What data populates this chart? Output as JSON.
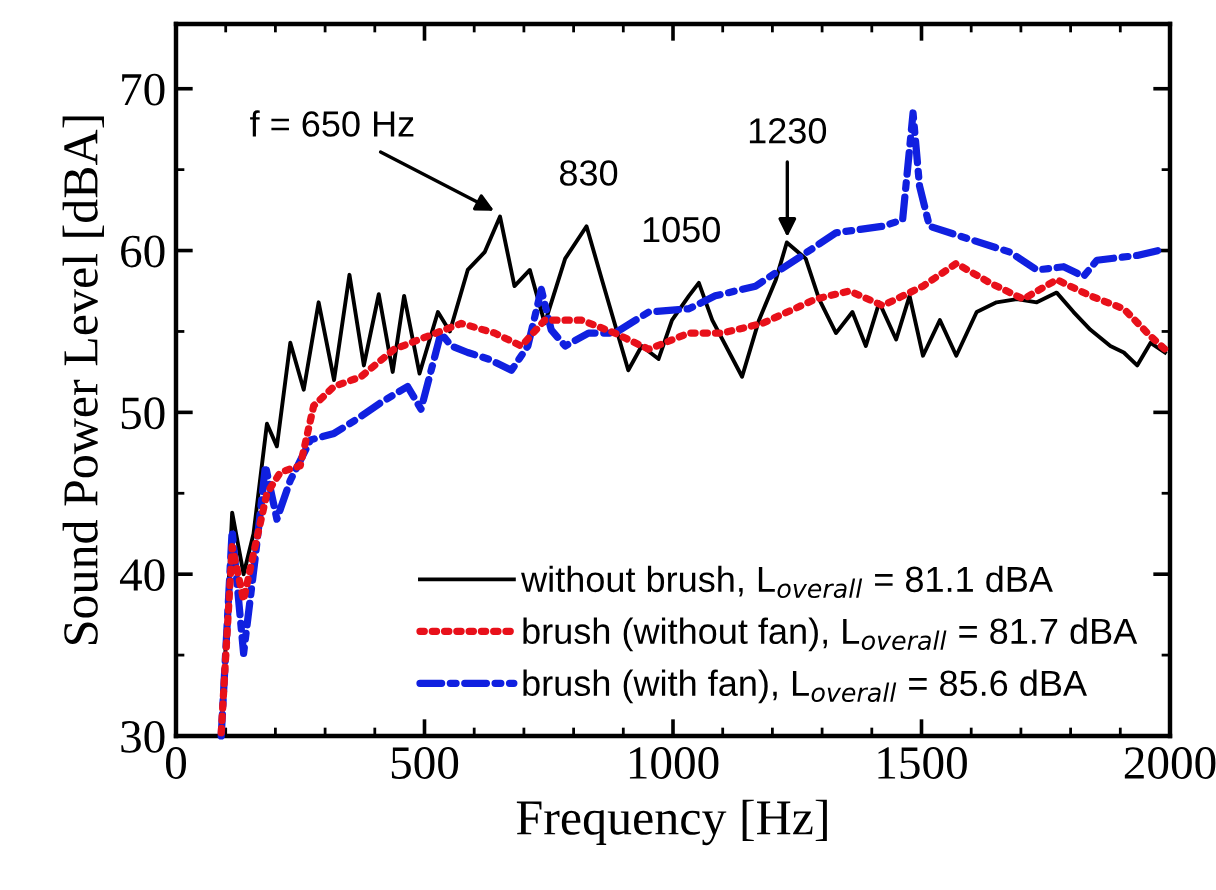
{
  "chart_data": {
    "type": "line",
    "xlabel": "Frequency [Hz]",
    "ylabel": "Sound Power Level [dBA]",
    "xlim": [
      0,
      2000
    ],
    "xticks": [
      0,
      500,
      1000,
      1500,
      2000
    ],
    "ylim": [
      30,
      74
    ],
    "yticks": [
      30,
      40,
      50,
      60,
      70
    ],
    "grid": false,
    "legend": "bottom right",
    "series": [
      {
        "name": "without brush, L$_{overall}$ = 81.1 dBA",
        "color": "#000000",
        "line_style": "solid",
        "x": [
          91,
          113,
          136,
          156,
          183,
          203,
          230,
          257,
          287,
          318,
          349,
          378,
          408,
          436,
          459,
          490,
          527,
          551,
          587,
          621,
          652,
          681,
          712,
          742,
          783,
          826,
          857,
          910,
          937,
          971,
          998,
          1032,
          1052,
          1079,
          1139,
          1173,
          1207,
          1229,
          1267,
          1294,
          1328,
          1361,
          1388,
          1415,
          1449,
          1476,
          1503,
          1537,
          1570,
          1611,
          1651,
          1692,
          1732,
          1772,
          1806,
          1840,
          1880,
          1907,
          1934,
          1961,
          1990
        ],
        "values": [
          30,
          43.8,
          40,
          42.5,
          49.3,
          47.9,
          54.3,
          51.4,
          56.8,
          52,
          58.5,
          52.9,
          57.3,
          52.5,
          57.2,
          52.4,
          56.2,
          55,
          58.8,
          59.9,
          62.1,
          57.8,
          58.8,
          55.5,
          59.5,
          61.5,
          58.2,
          52.6,
          54.1,
          53.3,
          55.7,
          57.2,
          58,
          55.7,
          52.2,
          55.7,
          58.2,
          60.5,
          59.5,
          57,
          54.9,
          56.2,
          54.1,
          56.8,
          54.5,
          57.2,
          53.5,
          55.7,
          53.5,
          56.2,
          56.8,
          57,
          56.8,
          57.4,
          56.2,
          55.1,
          54.1,
          53.7,
          52.9,
          54.3,
          53.7
        ]
      },
      {
        "name": "brush (without fan), L$_{overall}$ = 81.7 dBA",
        "color": "#e8101a",
        "line_style": "dotted",
        "x": [
          91,
          113,
          136,
          159,
          183,
          210,
          250,
          277,
          318,
          372,
          439,
          506,
          574,
          641,
          695,
          742,
          816,
          883,
          951,
          1032,
          1099,
          1180,
          1287,
          1355,
          1422,
          1503,
          1570,
          1638,
          1705,
          1772,
          1840,
          1907,
          1961,
          1990
        ],
        "values": [
          30.2,
          41.7,
          38.4,
          41.7,
          45,
          46.3,
          46.7,
          50.4,
          51.6,
          52.2,
          53.9,
          54.7,
          55.5,
          54.9,
          54.1,
          55.7,
          55.7,
          54.9,
          53.9,
          54.9,
          54.9,
          55.5,
          57,
          57.5,
          56.6,
          57.8,
          59.2,
          58,
          57,
          58.2,
          57.2,
          56.4,
          54.7,
          53.9
        ]
      },
      {
        "name": "brush (with fan), L$_{overall}$ = 85.6 dBA",
        "color": "#1020e0",
        "line_style": "dashdot",
        "x": [
          91,
          113,
          136,
          159,
          180,
          203,
          230,
          271,
          318,
          365,
          412,
          466,
          493,
          533,
          554,
          587,
          628,
          675,
          708,
          735,
          755,
          783,
          830,
          883,
          951,
          1032,
          1085,
          1166,
          1260,
          1328,
          1422,
          1462,
          1483,
          1496,
          1516,
          1597,
          1678,
          1732,
          1786,
          1826,
          1853,
          1934,
          1990
        ],
        "values": [
          30,
          42.7,
          35.1,
          40.9,
          46.7,
          43.4,
          45.8,
          48.3,
          48.7,
          49.6,
          50.6,
          51.6,
          50.2,
          54.9,
          54.1,
          53.7,
          53.3,
          52.6,
          54.1,
          57.6,
          55.1,
          54.1,
          54.9,
          54.9,
          56.2,
          56.4,
          57.2,
          57.8,
          59.7,
          61.1,
          61.5,
          61.9,
          68.5,
          64,
          61.5,
          60.7,
          59.9,
          58.8,
          59,
          58.4,
          59.4,
          59.7,
          60.1
        ]
      }
    ],
    "annotations": [
      {
        "text": "f = 650 Hz",
        "x": 650,
        "y": 62.3
      },
      {
        "text": "830",
        "x": 830,
        "y": 61.5
      },
      {
        "text": "1050",
        "x": 1050,
        "y": 58
      },
      {
        "text": "1230",
        "x": 1230,
        "y": 60.5
      }
    ]
  }
}
